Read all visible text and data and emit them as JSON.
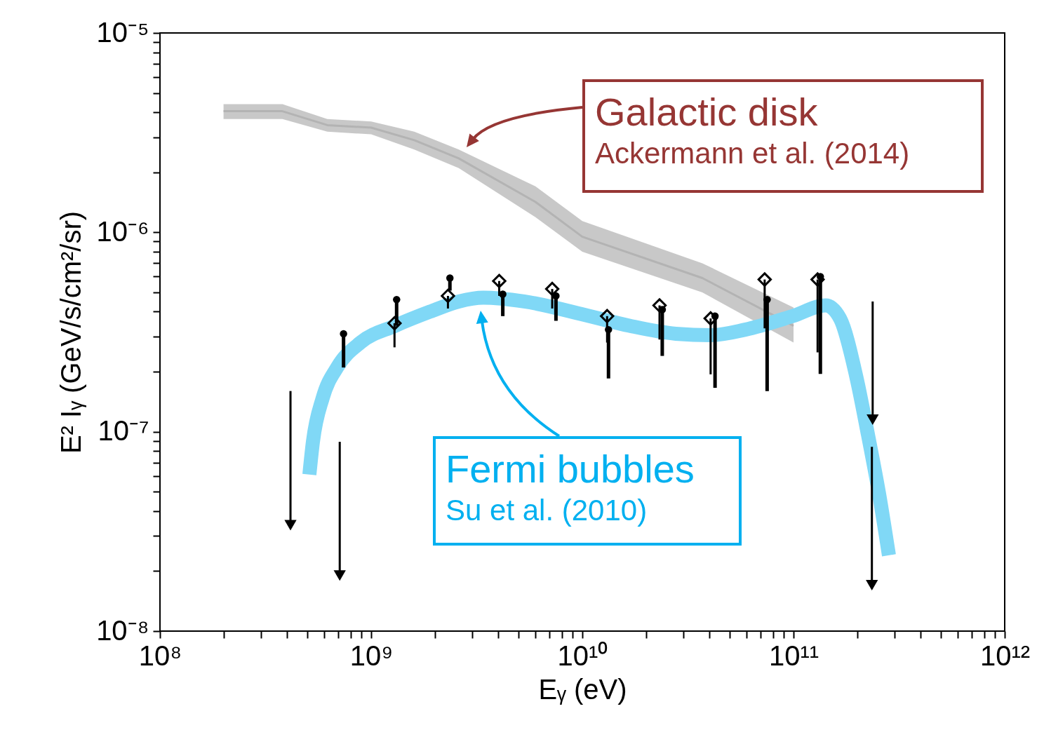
{
  "chart_data": {
    "type": "scatter",
    "xlabel": "Eᵧ (eV)",
    "ylabel": "E² Iᵧ (GeV/s/cm²/sr)",
    "log": "xy",
    "grid": false,
    "xlim": [
      100000000.0,
      1000000000000.0
    ],
    "ylim": [
      1e-08,
      1e-05
    ],
    "xticks": [
      {
        "value": 100000000.0,
        "label": "10⁸"
      },
      {
        "value": 200000000.0,
        "label": null
      },
      {
        "value": 300000000.0,
        "label": null
      },
      {
        "value": 400000000.0,
        "label": null
      },
      {
        "value": 500000000.0,
        "label": null
      },
      {
        "value": 600000000.0,
        "label": null
      },
      {
        "value": 700000000.0,
        "label": null
      },
      {
        "value": 800000000.0,
        "label": null
      },
      {
        "value": 900000000.0,
        "label": null
      },
      {
        "value": 1000000000.0,
        "label": "10⁹"
      },
      {
        "value": 2000000000.0,
        "label": null
      },
      {
        "value": 3000000000.0,
        "label": null
      },
      {
        "value": 4000000000.0,
        "label": null
      },
      {
        "value": 5000000000.0,
        "label": null
      },
      {
        "value": 6000000000.0,
        "label": null
      },
      {
        "value": 7000000000.0,
        "label": null
      },
      {
        "value": 8000000000.0,
        "label": null
      },
      {
        "value": 9000000000.0,
        "label": null
      },
      {
        "value": 10000000000.0,
        "label": "10¹⁰"
      },
      {
        "value": 20000000000.0,
        "label": null
      },
      {
        "value": 30000000000.0,
        "label": null
      },
      {
        "value": 40000000000.0,
        "label": null
      },
      {
        "value": 50000000000.0,
        "label": null
      },
      {
        "value": 60000000000.0,
        "label": null
      },
      {
        "value": 70000000000.0,
        "label": null
      },
      {
        "value": 80000000000.0,
        "label": null
      },
      {
        "value": 90000000000.0,
        "label": null
      },
      {
        "value": 100000000000.0,
        "label": "10¹¹"
      },
      {
        "value": 200000000000.0,
        "label": null
      },
      {
        "value": 300000000000.0,
        "label": null
      },
      {
        "value": 400000000000.0,
        "label": null
      },
      {
        "value": 500000000000.0,
        "label": null
      },
      {
        "value": 600000000000.0,
        "label": null
      },
      {
        "value": 700000000000.0,
        "label": null
      },
      {
        "value": 800000000000.0,
        "label": null
      },
      {
        "value": 900000000000.0,
        "label": null
      },
      {
        "value": 1000000000000.0,
        "label": "10¹²"
      }
    ],
    "yticks": [
      {
        "value": 1e-08,
        "label": "10⁻⁸"
      },
      {
        "value": 2e-08,
        "label": null
      },
      {
        "value": 3e-08,
        "label": null
      },
      {
        "value": 4e-08,
        "label": null
      },
      {
        "value": 5e-08,
        "label": null
      },
      {
        "value": 6e-08,
        "label": null
      },
      {
        "value": 7e-08,
        "label": null
      },
      {
        "value": 8e-08,
        "label": null
      },
      {
        "value": 9e-08,
        "label": null
      },
      {
        "value": 1e-07,
        "label": "10⁻⁷"
      },
      {
        "value": 2e-07,
        "label": null
      },
      {
        "value": 3e-07,
        "label": null
      },
      {
        "value": 4e-07,
        "label": null
      },
      {
        "value": 5e-07,
        "label": null
      },
      {
        "value": 6e-07,
        "label": null
      },
      {
        "value": 7e-07,
        "label": null
      },
      {
        "value": 8e-07,
        "label": null
      },
      {
        "value": 9e-07,
        "label": null
      },
      {
        "value": 1e-06,
        "label": "10⁻⁶"
      },
      {
        "value": 2e-06,
        "label": null
      },
      {
        "value": 3e-06,
        "label": null
      },
      {
        "value": 4e-06,
        "label": null
      },
      {
        "value": 5e-06,
        "label": null
      },
      {
        "value": 6e-06,
        "label": null
      },
      {
        "value": 7e-06,
        "label": null
      },
      {
        "value": 8e-06,
        "label": null
      },
      {
        "value": 9e-06,
        "label": null
      },
      {
        "value": 1e-05,
        "label": "10⁻⁵"
      }
    ],
    "annotations": [
      "Galactic disk",
      "Ackermann et al. (2014)",
      "Fermi bubbles",
      "Su et al. (2010)"
    ],
    "series": [
      {
        "type": "line",
        "color": "#b3b3b3",
        "x": [
          200000000.0,
          380000000.0,
          620000000.0,
          1000000000.0,
          1600000000.0,
          2600000000.0,
          6000000000.0,
          10000000000.0,
          37000000000.0,
          100000000000.0
        ],
        "values": [
          4.05e-06,
          4.05e-06,
          3.45e-06,
          3.35e-06,
          2.9e-06,
          2.35e-06,
          1.42e-06,
          9.5e-07,
          5.9e-07,
          3.4e-07
        ],
        "lower": [
          3.7e-06,
          3.7e-06,
          3.2e-06,
          3.1e-06,
          2.6e-06,
          2.1e-06,
          1.19e-06,
          8e-07,
          5e-07,
          2.8e-07
        ],
        "upper": [
          4.4e-06,
          4.4e-06,
          3.7e-06,
          3.6e-06,
          3.2e-06,
          2.6e-06,
          1.7e-06,
          1.14e-06,
          7e-07,
          4.2e-07
        ]
      },
      {
        "type": "line",
        "color": "#80d8f6",
        "x": [
          510000000.0,
          530000000.0,
          590000000.0,
          690000000.0,
          890000000.0,
          1300000000.0,
          1900000000.0,
          2600000000.0,
          3400000000.0,
          5300000000.0,
          10800000000.0,
          16700000000.0,
          27700000000.0,
          40600000000.0,
          59000000000.0,
          99000000000.0,
          142000000000.0,
          166000000000.0,
          198000000000.0,
          225000000000.0,
          254000000000.0,
          283000000000.0
        ],
        "values": [
          6.1e-08,
          8.9e-08,
          1.48e-07,
          2.1e-07,
          2.8e-07,
          3.4e-07,
          4e-07,
          4.5e-07,
          4.7e-07,
          4.5e-07,
          3.8e-07,
          3.4e-07,
          3.1e-07,
          3.05e-07,
          3.25e-07,
          3.8e-07,
          4.3e-07,
          3.7e-07,
          1.9e-07,
          9.7e-08,
          4.9e-08,
          2.4e-08
        ]
      },
      {
        "color": "#000000",
        "marker": "circle",
        "x": [
          740000000.0,
          1320000000.0,
          2360000000.0,
          4200000000.0,
          7500000000.0,
          13300000000.0,
          23900000000.0,
          42500000000.0,
          75000000000.0,
          134000000000.0
        ],
        "values": [
          3.1e-07,
          4.6e-07,
          5.9e-07,
          4.9e-07,
          4.8e-07,
          3.25e-07,
          4.1e-07,
          3.8e-07,
          4.6e-07,
          6e-07
        ],
        "errors": [
          [
            2.1e-07,
            3.1e-07
          ],
          [
            3.4e-07,
            4.6e-07
          ],
          [
            5.1e-07,
            5.9e-07
          ],
          [
            3.8e-07,
            4.9e-07
          ],
          [
            3.6e-07,
            4.8e-07
          ],
          [
            1.85e-07,
            3.25e-07
          ],
          [
            2.4e-07,
            4.1e-07
          ],
          [
            1.66e-07,
            3.8e-07
          ],
          [
            1.6e-07,
            4.6e-07
          ],
          [
            1.95e-07,
            6e-07
          ]
        ]
      },
      {
        "color": "#000000",
        "marker": "diamond",
        "x": [
          1290000000.0,
          2310000000.0,
          4040000000.0,
          7200000000.0,
          13100000000.0,
          23200000000.0,
          40500000000.0,
          73000000000.0,
          130000000000.0
        ],
        "values": [
          3.5e-07,
          4.8e-07,
          5.7e-07,
          5.2e-07,
          3.8e-07,
          4.3e-07,
          3.7e-07,
          5.8e-07,
          5.8e-07
        ],
        "errors": [
          [
            2.65e-07,
            3.5e-07
          ],
          [
            4.15e-07,
            4.8e-07
          ],
          [
            4.8e-07,
            5.7e-07
          ],
          [
            4.15e-07,
            5.2e-07
          ],
          [
            2.8e-07,
            3.8e-07
          ],
          [
            2.9e-07,
            4.3e-07
          ],
          [
            1.94e-07,
            3.7e-07
          ],
          [
            3.3e-07,
            5.8e-07
          ],
          [
            2.5e-07,
            5.8e-07
          ]
        ]
      },
      {
        "color": "#000000",
        "marker": "triangle",
        "x": [
          415000000.0,
          710000000.0,
          237000000000.0,
          235000000000.0
        ],
        "values": [
          3.4e-08,
          1.9e-08,
          1.15e-07,
          1.7e-08
        ],
        "errors": [
          [
            3.4e-08,
            1.6e-07
          ],
          [
            1.9e-08,
            8.9e-08
          ],
          [
            1.15e-07,
            4.5e-07
          ],
          [
            1.7e-08,
            8.4e-08
          ]
        ]
      }
    ]
  }
}
